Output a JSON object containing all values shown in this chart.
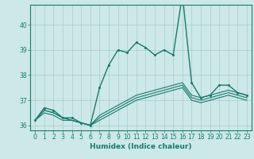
{
  "xlabel": "Humidex (Indice chaleur)",
  "xlim": [
    -0.5,
    23.5
  ],
  "ylim": [
    35.8,
    40.8
  ],
  "yticks": [
    36,
    37,
    38,
    39,
    40
  ],
  "xticks": [
    0,
    1,
    2,
    3,
    4,
    5,
    6,
    7,
    8,
    9,
    10,
    11,
    12,
    13,
    14,
    15,
    16,
    17,
    18,
    19,
    20,
    21,
    22,
    23
  ],
  "background_color": "#cce8e8",
  "grid_color": "#aacccc",
  "line_color": "#1a7a6e",
  "lines": [
    [
      36.2,
      36.7,
      36.6,
      36.3,
      36.3,
      36.1,
      36.0,
      37.5,
      38.4,
      39.0,
      38.9,
      39.3,
      39.1,
      38.8,
      39.0,
      38.8,
      41.2,
      37.7,
      37.1,
      37.2,
      37.6,
      37.6,
      37.3,
      37.2
    ],
    [
      36.2,
      36.6,
      36.5,
      36.3,
      36.2,
      36.1,
      36.0,
      36.4,
      36.6,
      36.8,
      37.0,
      37.2,
      37.3,
      37.4,
      37.5,
      37.6,
      37.7,
      37.2,
      37.1,
      37.2,
      37.3,
      37.4,
      37.3,
      37.2
    ],
    [
      36.2,
      36.6,
      36.5,
      36.3,
      36.2,
      36.1,
      36.0,
      36.3,
      36.5,
      36.7,
      36.9,
      37.1,
      37.2,
      37.3,
      37.4,
      37.5,
      37.6,
      37.1,
      37.0,
      37.1,
      37.2,
      37.3,
      37.2,
      37.1
    ],
    [
      36.2,
      36.5,
      36.4,
      36.2,
      36.2,
      36.1,
      36.0,
      36.2,
      36.4,
      36.6,
      36.8,
      37.0,
      37.1,
      37.2,
      37.3,
      37.4,
      37.5,
      37.0,
      36.9,
      37.0,
      37.1,
      37.2,
      37.1,
      37.0
    ]
  ],
  "marker_line_idx": 0,
  "marker_size": 2.2,
  "lw_main": 1.0,
  "lw_other": 0.8,
  "tick_fontsize": 5.5,
  "xlabel_fontsize": 6.5
}
